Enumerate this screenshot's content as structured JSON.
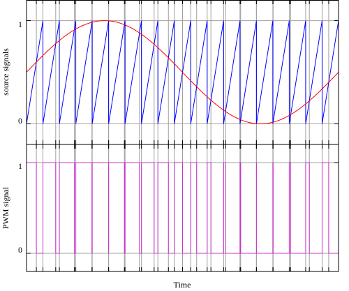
{
  "chart_data": [
    {
      "type": "line",
      "panel": "top",
      "ylabel": "source signals",
      "xlabel": "",
      "ylim": [
        -0.2,
        1.2
      ],
      "yticks": [
        0,
        1
      ],
      "xlim": [
        0,
        1
      ],
      "grid": "horizontal at y ticks",
      "series": [
        {
          "signal": "sawtooth carrier",
          "color": "#0000ff",
          "waveform": "sawtooth",
          "periods": 19,
          "min": 0,
          "max": 1
        },
        {
          "signal": "sine reference",
          "color": "#ff0000",
          "waveform": "sine",
          "offset": 0.5,
          "amplitude": 0.5,
          "cycles": 1,
          "phase_cycles": 0
        }
      ]
    },
    {
      "type": "line",
      "panel": "bottom",
      "ylabel": "PWM signal",
      "xlabel": "Time",
      "ylim": [
        -0.2,
        1.2
      ],
      "yticks": [
        0,
        1
      ],
      "xlim": [
        0,
        1
      ],
      "grid": "horizontal at y ticks",
      "series": [
        {
          "signal": "PWM output (reference > carrier)",
          "color": "#cc33cc",
          "waveform": "step",
          "low": 0,
          "high": 1
        }
      ]
    }
  ],
  "labels": {
    "top_ylabel": "source signals",
    "bottom_ylabel": "PWM signal",
    "xlabel": "Time",
    "top_ytick_0": "0",
    "top_ytick_1": "1",
    "bottom_ytick_0": "0",
    "bottom_ytick_1": "1"
  },
  "colors": {
    "carrier": "#0000ff",
    "reference": "#ff0000",
    "pwm": "#cc33cc",
    "grid": "#a0a0a0",
    "frame": "#000000"
  }
}
